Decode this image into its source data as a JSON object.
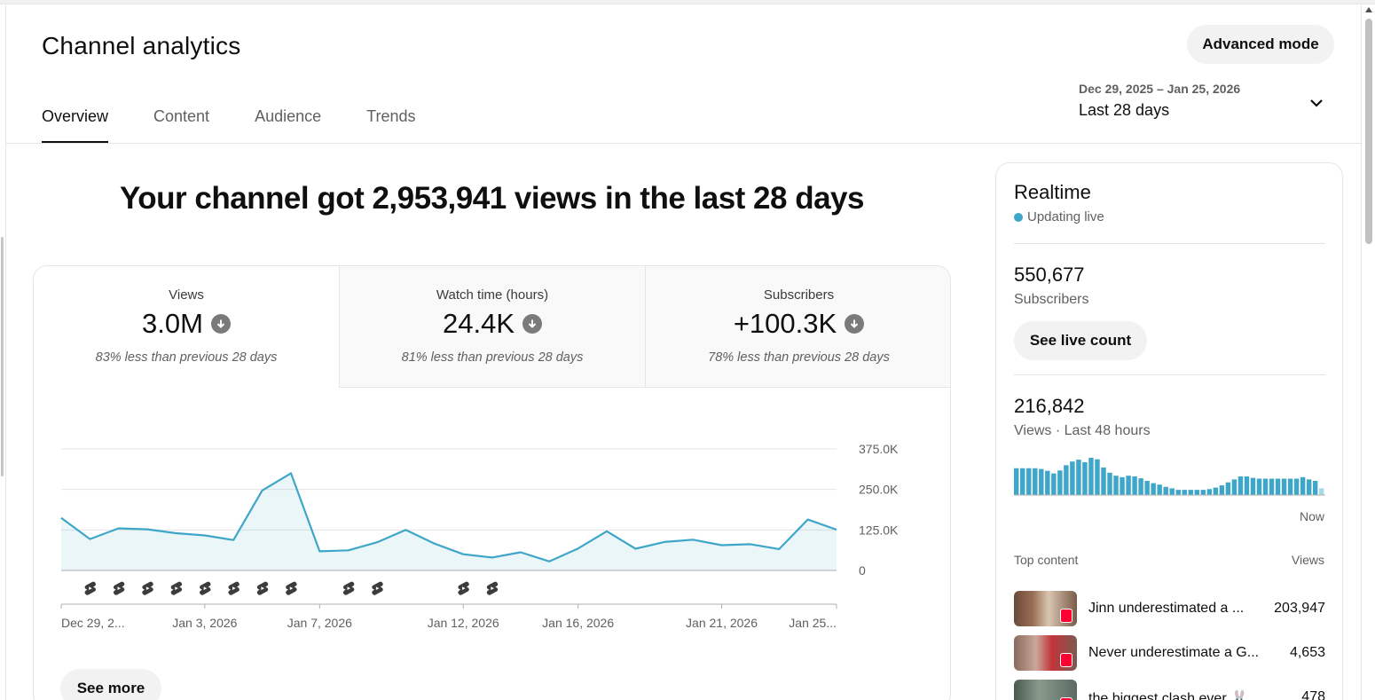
{
  "page": {
    "title": "Channel analytics",
    "advanced_mode_label": "Advanced mode"
  },
  "tabs": [
    {
      "label": "Overview",
      "active": true
    },
    {
      "label": "Content",
      "active": false
    },
    {
      "label": "Audience",
      "active": false
    },
    {
      "label": "Trends",
      "active": false
    }
  ],
  "date_picker": {
    "range": "Dec 29, 2025 – Jan 25, 2026",
    "label": "Last 28 days",
    "icon": "chevron-down-icon"
  },
  "headline": "Your channel got 2,953,941 views in the last 28 days",
  "metrics": [
    {
      "label": "Views",
      "value": "3.0M",
      "trend_icon": "arrow-down-circle-icon",
      "note": "83% less than previous 28 days",
      "selected": true
    },
    {
      "label": "Watch time (hours)",
      "value": "24.4K",
      "trend_icon": "arrow-down-circle-icon",
      "note": "81% less than previous 28 days",
      "selected": false
    },
    {
      "label": "Subscribers",
      "value": "+100.3K",
      "trend_icon": "arrow-down-circle-icon",
      "note": "78% less than previous 28 days",
      "selected": false
    }
  ],
  "see_more_label": "See more",
  "chart_data": {
    "type": "area",
    "title": "",
    "xlabel": "",
    "ylabel": "",
    "ylim": [
      0,
      375000
    ],
    "y_ticks": [
      0,
      125000,
      250000,
      375000
    ],
    "y_tick_labels": [
      "0",
      "125.0K",
      "250.0K",
      "375.0K"
    ],
    "x_tick_labels": [
      {
        "label": "Dec 29, 2...",
        "index": 0
      },
      {
        "label": "Jan 3, 2026",
        "index": 5
      },
      {
        "label": "Jan 7, 2026",
        "index": 9
      },
      {
        "label": "Jan 12, 2026",
        "index": 14
      },
      {
        "label": "Jan 16, 2026",
        "index": 18
      },
      {
        "label": "Jan 21, 2026",
        "index": 23
      },
      {
        "label": "Jan 25...",
        "index": 27
      }
    ],
    "series": [
      {
        "values": [
          162000,
          97000,
          130000,
          127000,
          115000,
          108000,
          94000,
          247000,
          300000,
          59000,
          62000,
          87000,
          125000,
          83000,
          50000,
          40000,
          56000,
          28000,
          68000,
          121000,
          67000,
          88000,
          95000,
          78000,
          81000,
          66000,
          157000,
          126000
        ],
        "color": "#3ea6c8"
      }
    ],
    "upload_markers_at_index": [
      1,
      2,
      3,
      4,
      5,
      6,
      7,
      8,
      10,
      11,
      14,
      15
    ],
    "upload_marker_icon": "shorts-icon",
    "grid": true
  },
  "realtime": {
    "title": "Realtime",
    "status": "Updating live",
    "subscribers_value": "550,677",
    "subscribers_label": "Subscribers",
    "live_count_label": "See live count",
    "views_value": "216,842",
    "views_label": "Views · Last 48 hours",
    "now_label": "Now",
    "hourly_views_relative": [
      0.72,
      0.72,
      0.72,
      0.72,
      0.7,
      0.65,
      0.58,
      0.66,
      0.8,
      0.9,
      0.95,
      0.88,
      1.0,
      0.96,
      0.74,
      0.6,
      0.52,
      0.48,
      0.52,
      0.5,
      0.45,
      0.38,
      0.32,
      0.28,
      0.22,
      0.18,
      0.14,
      0.14,
      0.14,
      0.14,
      0.14,
      0.16,
      0.2,
      0.26,
      0.34,
      0.42,
      0.5,
      0.5,
      0.46,
      0.44,
      0.44,
      0.44,
      0.44,
      0.44,
      0.44,
      0.44,
      0.48,
      0.42,
      0.38,
      0.18
    ],
    "top_content_label": "Top content",
    "top_content_views_label": "Views",
    "top_content": [
      {
        "title": "Jinn underestimated a ...",
        "views": "203,947",
        "icon": "shorts-icon"
      },
      {
        "title": "Never underestimate a G...",
        "views": "4,653",
        "icon": "shorts-icon"
      },
      {
        "title": "the biggest clash ever 🐰",
        "views": "478",
        "icon": "shorts-icon"
      }
    ]
  }
}
